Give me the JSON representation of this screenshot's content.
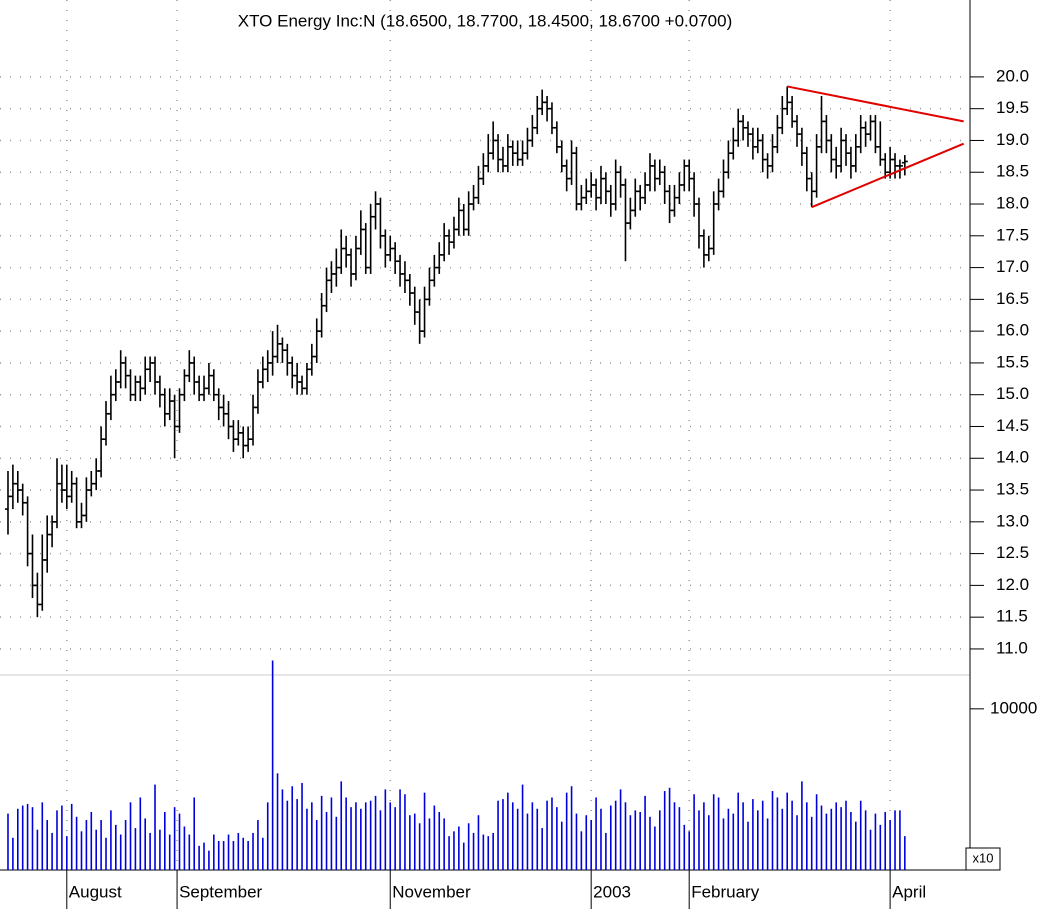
{
  "chart_data": {
    "type": "ohlc",
    "title": "XTO Energy Inc:N (18.6500, 18.7700, 18.4500, 18.6700 +0.0700)",
    "xlim": [
      -1.63,
      196.3
    ],
    "ylim": [
      10.59,
      21.21
    ],
    "yticks": [
      {
        "value": 11,
        "label": "11.0"
      },
      11.5,
      {
        "value": 12,
        "label": "12.0"
      },
      12.5,
      {
        "value": 13,
        "label": "13.0"
      },
      13.5,
      {
        "value": 14,
        "label": "14.0"
      },
      14.5,
      {
        "value": 15,
        "label": "15.0"
      },
      15.5,
      {
        "value": 16,
        "label": "16.0"
      },
      16.5,
      {
        "value": 17,
        "label": "17.0"
      },
      17.5,
      {
        "value": 18,
        "label": "18.0"
      },
      18.5,
      {
        "value": 19,
        "label": "19.0"
      },
      19.5,
      {
        "value": 20,
        "label": "20.0"
      }
    ],
    "xticks": [
      {
        "value": 12,
        "label": "August"
      },
      {
        "value": 34.5,
        "label": "September"
      },
      {
        "value": 78,
        "label": "November"
      },
      {
        "value": 119,
        "label": "2003"
      },
      {
        "value": 139,
        "label": "February"
      },
      {
        "value": 180,
        "label": "April"
      }
    ],
    "grid": true,
    "color": "#000000",
    "bars": [
      [
        13.2,
        13.8,
        12.8,
        13.4
      ],
      [
        13.4,
        13.9,
        13.2,
        13.6
      ],
      [
        13.6,
        13.8,
        13.3,
        13.5
      ],
      [
        13.5,
        13.6,
        13.1,
        13.3
      ],
      [
        13.3,
        13.4,
        12.3,
        12.5
      ],
      [
        12.5,
        12.8,
        11.8,
        12.0
      ],
      [
        12.0,
        12.2,
        11.5,
        11.7
      ],
      [
        11.7,
        12.8,
        11.6,
        12.4
      ],
      [
        12.4,
        13.1,
        12.2,
        12.8
      ],
      [
        12.8,
        13.1,
        12.6,
        13.0
      ],
      [
        13.0,
        14.0,
        12.9,
        13.6
      ],
      [
        13.6,
        13.9,
        13.3,
        13.5
      ],
      [
        13.5,
        13.9,
        13.2,
        13.4
      ],
      [
        13.4,
        13.8,
        13.3,
        13.6
      ],
      [
        13.6,
        13.7,
        12.9,
        13.0
      ],
      [
        13.0,
        13.3,
        12.9,
        13.1
      ],
      [
        13.1,
        13.7,
        13.0,
        13.5
      ],
      [
        13.5,
        13.8,
        13.4,
        13.6
      ],
      [
        13.6,
        14.0,
        13.5,
        13.8
      ],
      [
        13.8,
        14.5,
        13.7,
        14.3
      ],
      [
        14.3,
        14.9,
        14.2,
        14.7
      ],
      [
        14.7,
        15.3,
        14.6,
        15.0
      ],
      [
        15.0,
        15.4,
        14.9,
        15.2
      ],
      [
        15.2,
        15.7,
        15.1,
        15.5
      ],
      [
        15.5,
        15.6,
        15.1,
        15.3
      ],
      [
        15.3,
        15.4,
        14.9,
        15.0
      ],
      [
        15.0,
        15.3,
        14.9,
        15.2
      ],
      [
        15.2,
        15.3,
        14.9,
        15.1
      ],
      [
        15.1,
        15.6,
        15.0,
        15.4
      ],
      [
        15.4,
        15.6,
        15.2,
        15.5
      ],
      [
        15.5,
        15.6,
        15.0,
        15.2
      ],
      [
        15.2,
        15.3,
        14.8,
        15.0
      ],
      [
        15.0,
        15.1,
        14.5,
        14.7
      ],
      [
        14.7,
        15.1,
        14.6,
        14.9
      ],
      [
        14.9,
        15.0,
        14.0,
        14.5
      ],
      [
        14.5,
        15.1,
        14.4,
        15.0
      ],
      [
        15.0,
        15.4,
        14.9,
        15.3
      ],
      [
        15.3,
        15.7,
        15.2,
        15.5
      ],
      [
        15.5,
        15.6,
        15.0,
        15.2
      ],
      [
        15.2,
        15.3,
        14.9,
        15.0
      ],
      [
        15.0,
        15.3,
        14.9,
        15.1
      ],
      [
        15.1,
        15.5,
        15.0,
        15.3
      ],
      [
        15.3,
        15.4,
        14.9,
        15.0
      ],
      [
        15.0,
        15.1,
        14.6,
        14.8
      ],
      [
        14.8,
        15.0,
        14.5,
        14.7
      ],
      [
        14.7,
        14.9,
        14.3,
        14.5
      ],
      [
        14.5,
        14.6,
        14.1,
        14.3
      ],
      [
        14.3,
        14.6,
        14.2,
        14.4
      ],
      [
        14.4,
        14.5,
        14.0,
        14.2
      ],
      [
        14.2,
        14.5,
        14.1,
        14.3
      ],
      [
        14.3,
        15.0,
        14.2,
        14.8
      ],
      [
        14.8,
        15.4,
        14.7,
        15.2
      ],
      [
        15.2,
        15.6,
        15.1,
        15.4
      ],
      [
        15.4,
        15.7,
        15.2,
        15.5
      ],
      [
        15.5,
        16.0,
        15.3,
        15.6
      ],
      [
        15.6,
        16.1,
        15.5,
        15.8
      ],
      [
        15.8,
        15.9,
        15.5,
        15.7
      ],
      [
        15.7,
        15.8,
        15.3,
        15.5
      ],
      [
        15.5,
        15.6,
        15.1,
        15.3
      ],
      [
        15.3,
        15.5,
        15.0,
        15.2
      ],
      [
        15.2,
        15.3,
        15.0,
        15.1
      ],
      [
        15.1,
        15.5,
        15.0,
        15.4
      ],
      [
        15.4,
        15.8,
        15.3,
        15.6
      ],
      [
        15.6,
        16.2,
        15.5,
        16.0
      ],
      [
        16.0,
        16.6,
        15.9,
        16.4
      ],
      [
        16.4,
        17.0,
        16.3,
        16.8
      ],
      [
        16.8,
        17.1,
        16.6,
        16.9
      ],
      [
        16.9,
        17.3,
        16.7,
        17.0
      ],
      [
        17.0,
        17.6,
        16.9,
        17.3
      ],
      [
        17.3,
        17.5,
        17.0,
        17.2
      ],
      [
        17.2,
        17.3,
        16.7,
        16.9
      ],
      [
        16.9,
        17.5,
        16.8,
        17.3
      ],
      [
        17.3,
        17.9,
        17.2,
        17.6
      ],
      [
        17.6,
        17.7,
        16.9,
        17.0
      ],
      [
        17.0,
        18.0,
        16.9,
        17.8
      ],
      [
        17.8,
        18.2,
        17.6,
        18.0
      ],
      [
        18.0,
        18.1,
        17.3,
        17.5
      ],
      [
        17.5,
        17.6,
        17.0,
        17.2
      ],
      [
        17.2,
        17.5,
        17.1,
        17.3
      ],
      [
        17.3,
        17.4,
        16.9,
        17.1
      ],
      [
        17.1,
        17.2,
        16.7,
        16.9
      ],
      [
        16.9,
        17.1,
        16.6,
        16.8
      ],
      [
        16.8,
        16.9,
        16.4,
        16.6
      ],
      [
        16.6,
        16.7,
        16.1,
        16.3
      ],
      [
        16.3,
        16.5,
        15.8,
        16.0
      ],
      [
        16.0,
        16.7,
        15.9,
        16.5
      ],
      [
        16.5,
        17.0,
        16.4,
        16.8
      ],
      [
        16.8,
        17.2,
        16.7,
        17.0
      ],
      [
        17.0,
        17.4,
        16.9,
        17.2
      ],
      [
        17.2,
        17.7,
        17.1,
        17.5
      ],
      [
        17.5,
        17.6,
        17.2,
        17.4
      ],
      [
        17.4,
        17.8,
        17.3,
        17.6
      ],
      [
        17.6,
        18.1,
        17.5,
        17.9
      ],
      [
        17.9,
        18.0,
        17.5,
        17.6
      ],
      [
        17.6,
        18.2,
        17.5,
        18.0
      ],
      [
        18.0,
        18.3,
        17.9,
        18.1
      ],
      [
        18.1,
        18.6,
        18.0,
        18.4
      ],
      [
        18.4,
        18.8,
        18.3,
        18.6
      ],
      [
        18.6,
        19.1,
        18.5,
        18.8
      ],
      [
        18.8,
        19.3,
        18.7,
        19.0
      ],
      [
        19.0,
        19.1,
        18.5,
        18.7
      ],
      [
        18.7,
        18.9,
        18.5,
        18.6
      ],
      [
        18.6,
        19.1,
        18.5,
        18.9
      ],
      [
        18.9,
        19.0,
        18.6,
        18.8
      ],
      [
        18.8,
        19.0,
        18.6,
        18.7
      ],
      [
        18.7,
        19.0,
        18.6,
        18.8
      ],
      [
        18.8,
        19.2,
        18.7,
        19.0
      ],
      [
        19.0,
        19.4,
        18.9,
        19.2
      ],
      [
        19.2,
        19.7,
        19.1,
        19.5
      ],
      [
        19.5,
        19.8,
        19.4,
        19.6
      ],
      [
        19.6,
        19.7,
        19.3,
        19.5
      ],
      [
        19.5,
        19.6,
        19.1,
        19.2
      ],
      [
        19.2,
        19.3,
        18.8,
        18.9
      ],
      [
        18.9,
        19.0,
        18.5,
        18.6
      ],
      [
        18.6,
        18.7,
        18.2,
        18.4
      ],
      [
        18.4,
        19.0,
        18.3,
        18.8
      ],
      [
        18.8,
        18.9,
        17.9,
        18.0
      ],
      [
        18.0,
        18.3,
        17.9,
        18.1
      ],
      [
        18.1,
        18.4,
        18.0,
        18.2
      ],
      [
        18.2,
        18.5,
        18.1,
        18.3
      ],
      [
        18.3,
        18.4,
        17.9,
        18.1
      ],
      [
        18.1,
        18.6,
        18.0,
        18.4
      ],
      [
        18.4,
        18.5,
        18.0,
        18.2
      ],
      [
        18.2,
        18.3,
        17.8,
        18.0
      ],
      [
        18.0,
        18.7,
        17.9,
        18.5
      ],
      [
        18.5,
        18.6,
        18.1,
        18.3
      ],
      [
        18.3,
        18.4,
        17.1,
        17.7
      ],
      [
        17.7,
        18.1,
        17.6,
        17.9
      ],
      [
        17.9,
        18.4,
        17.8,
        18.2
      ],
      [
        18.2,
        18.3,
        17.9,
        18.1
      ],
      [
        18.1,
        18.5,
        18.0,
        18.3
      ],
      [
        18.3,
        18.8,
        18.2,
        18.6
      ],
      [
        18.6,
        18.7,
        18.2,
        18.4
      ],
      [
        18.4,
        18.7,
        18.3,
        18.5
      ],
      [
        18.5,
        18.6,
        18.0,
        18.2
      ],
      [
        18.2,
        18.3,
        17.7,
        17.9
      ],
      [
        17.9,
        18.3,
        17.8,
        18.1
      ],
      [
        18.1,
        18.5,
        18.0,
        18.3
      ],
      [
        18.3,
        18.7,
        18.2,
        18.6
      ],
      [
        18.6,
        18.7,
        18.2,
        18.4
      ],
      [
        18.4,
        18.5,
        17.8,
        18.0
      ],
      [
        18.0,
        18.1,
        17.3,
        17.5
      ],
      [
        17.5,
        17.6,
        17.0,
        17.2
      ],
      [
        17.2,
        17.5,
        17.1,
        17.3
      ],
      [
        17.3,
        18.2,
        17.2,
        18.0
      ],
      [
        18.0,
        18.4,
        17.9,
        18.2
      ],
      [
        18.2,
        18.7,
        18.1,
        18.5
      ],
      [
        18.5,
        19.0,
        18.4,
        18.8
      ],
      [
        18.8,
        19.2,
        18.7,
        19.0
      ],
      [
        19.0,
        19.5,
        18.9,
        19.3
      ],
      [
        19.3,
        19.4,
        19.0,
        19.2
      ],
      [
        19.2,
        19.3,
        18.9,
        19.1
      ],
      [
        19.1,
        19.2,
        18.7,
        18.9
      ],
      [
        18.9,
        19.2,
        18.8,
        19.0
      ],
      [
        19.0,
        19.1,
        18.5,
        18.7
      ],
      [
        18.7,
        18.8,
        18.4,
        18.6
      ],
      [
        18.6,
        19.1,
        18.5,
        18.9
      ],
      [
        18.9,
        19.4,
        18.8,
        19.2
      ],
      [
        19.2,
        19.7,
        19.1,
        19.5
      ],
      [
        19.5,
        19.85,
        19.4,
        19.6
      ],
      [
        19.6,
        19.7,
        19.2,
        19.3
      ],
      [
        19.3,
        19.4,
        18.9,
        19.1
      ],
      [
        19.1,
        19.2,
        18.6,
        18.8
      ],
      [
        18.8,
        18.9,
        18.2,
        18.4
      ],
      [
        18.4,
        18.5,
        17.95,
        18.2
      ],
      [
        18.2,
        19.1,
        18.1,
        18.9
      ],
      [
        18.9,
        19.7,
        18.8,
        19.3
      ],
      [
        19.3,
        19.4,
        18.8,
        19.0
      ],
      [
        19.0,
        19.1,
        18.5,
        18.7
      ],
      [
        18.7,
        18.9,
        18.4,
        18.6
      ],
      [
        18.6,
        19.2,
        18.5,
        19.0
      ],
      [
        19.0,
        19.1,
        18.6,
        18.8
      ],
      [
        18.8,
        18.9,
        18.4,
        18.6
      ],
      [
        18.6,
        19.1,
        18.5,
        18.9
      ],
      [
        18.9,
        19.4,
        18.8,
        19.2
      ],
      [
        19.2,
        19.3,
        18.9,
        19.1
      ],
      [
        19.1,
        19.4,
        19.0,
        19.3
      ],
      [
        19.3,
        19.4,
        18.8,
        18.9
      ],
      [
        18.9,
        19.3,
        18.6,
        18.7
      ],
      [
        18.7,
        18.8,
        18.4,
        18.5
      ],
      [
        18.5,
        18.9,
        18.4,
        18.7
      ],
      [
        18.7,
        18.8,
        18.4,
        18.6
      ],
      [
        18.6,
        18.7,
        18.4,
        18.6
      ],
      [
        18.65,
        18.77,
        18.45,
        18.67
      ]
    ],
    "trendlines": [
      {
        "color": "#e00000",
        "x": [
          159,
          195
        ],
        "y": [
          19.85,
          19.3
        ]
      },
      {
        "color": "#e00000",
        "x": [
          164,
          195
        ],
        "y": [
          17.95,
          18.95
        ]
      }
    ],
    "volume": {
      "color": "#0000dd",
      "unit_label": "x10",
      "ylim": [
        0,
        12100
      ],
      "yticks": [
        10000
      ],
      "values": [
        3500,
        2000,
        3800,
        4000,
        4100,
        3900,
        2500,
        4200,
        3100,
        2300,
        3700,
        4000,
        2100,
        4100,
        3300,
        2400,
        3100,
        3600,
        2500,
        3100,
        2000,
        3700,
        2800,
        2200,
        3100,
        4200,
        2600,
        4500,
        3200,
        2300,
        5300,
        2500,
        3600,
        2200,
        3900,
        3500,
        2700,
        2200,
        4500,
        1500,
        1700,
        1200,
        2200,
        1800,
        1800,
        2200,
        1800,
        2300,
        2000,
        1800,
        2300,
        3100,
        2000,
        4200,
        13000,
        6000,
        5000,
        4300,
        5200,
        4400,
        5400,
        3800,
        4200,
        3100,
        4600,
        3600,
        4500,
        3300,
        5500,
        4500,
        3900,
        4200,
        3800,
        4200,
        4300,
        4600,
        3700,
        5000,
        4200,
        3900,
        5000,
        4700,
        3400,
        3500,
        2900,
        4800,
        3200,
        4000,
        3600,
        3200,
        2100,
        2400,
        2700,
        1700,
        2900,
        2300,
        3400,
        2200,
        2100,
        2300,
        4300,
        4400,
        4800,
        4200,
        3800,
        5300,
        3500,
        4200,
        3800,
        2600,
        4300,
        4500,
        3900,
        3000,
        4800,
        5200,
        3500,
        2400,
        3400,
        3100,
        4500,
        3800,
        2300,
        4000,
        4300,
        5000,
        4200,
        3400,
        3700,
        3600,
        4600,
        3300,
        2700,
        3700,
        4900,
        5100,
        4200,
        3900,
        2800,
        2400,
        4700,
        3700,
        4200,
        3400,
        4700,
        4500,
        3200,
        3800,
        3500,
        4800,
        4200,
        3000,
        4400,
        3700,
        4300,
        3200,
        4900,
        4500,
        3800,
        4800,
        4300,
        3400,
        5500,
        4200,
        3300,
        4700,
        4000,
        3500,
        3800,
        4200,
        3900,
        4300,
        3600,
        3000,
        4300,
        3700,
        2500,
        3500,
        2800,
        3600,
        3100,
        3700,
        3700,
        2100
      ]
    }
  }
}
